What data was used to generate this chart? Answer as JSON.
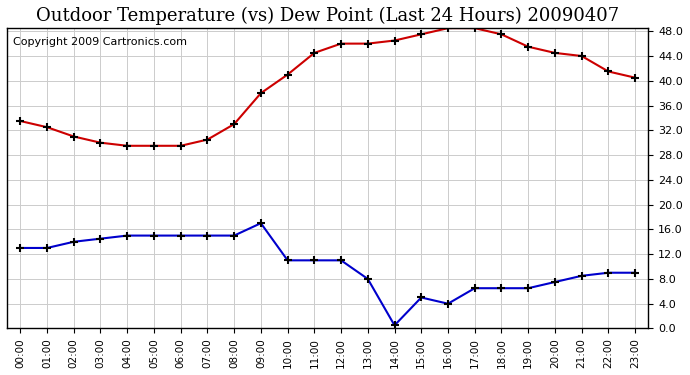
{
  "title": "Outdoor Temperature (vs) Dew Point (Last 24 Hours) 20090407",
  "copyright": "Copyright 2009 Cartronics.com",
  "x_labels": [
    "00:00",
    "01:00",
    "02:00",
    "03:00",
    "04:00",
    "05:00",
    "06:00",
    "07:00",
    "08:00",
    "09:00",
    "10:00",
    "11:00",
    "12:00",
    "13:00",
    "14:00",
    "15:00",
    "16:00",
    "17:00",
    "18:00",
    "19:00",
    "20:00",
    "21:00",
    "22:00",
    "23:00"
  ],
  "temp_data": [
    33.5,
    32.5,
    31.0,
    30.0,
    29.5,
    29.5,
    29.5,
    30.5,
    33.0,
    38.0,
    41.0,
    44.5,
    46.0,
    46.0,
    46.5,
    47.5,
    48.5,
    48.5,
    47.5,
    45.5,
    44.5,
    44.0,
    41.5,
    40.5
  ],
  "dew_data": [
    13.0,
    13.0,
    14.0,
    14.5,
    15.0,
    15.0,
    15.0,
    15.0,
    15.0,
    17.0,
    11.0,
    11.0,
    11.0,
    8.0,
    0.5,
    5.0,
    4.0,
    6.5,
    6.5,
    6.5,
    7.5,
    8.5,
    9.0,
    9.0
  ],
  "temp_color": "#cc0000",
  "dew_color": "#0000cc",
  "bg_color": "#ffffff",
  "plot_bg_color": "#ffffff",
  "grid_color": "#cccccc",
  "ylim": [
    0,
    48
  ],
  "ytick_step": 4,
  "title_fontsize": 13,
  "copyright_fontsize": 8
}
